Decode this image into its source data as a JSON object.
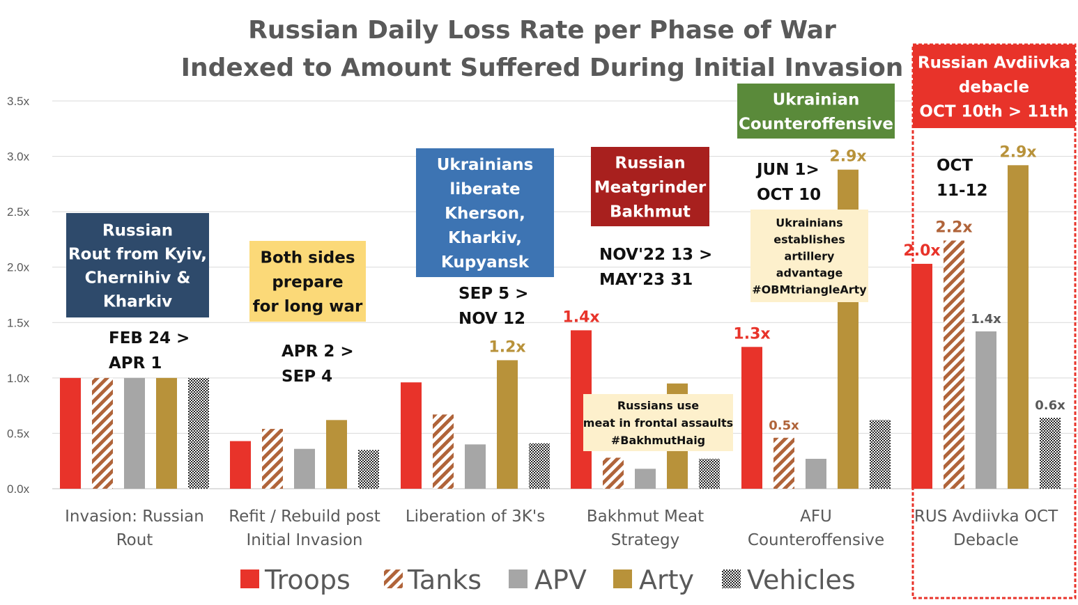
{
  "colors": {
    "Troops": "#e8332a",
    "Tanks": "#b0643a",
    "APV": "#a6a6a6",
    "Arty": "#b8923a",
    "Vehicles": "#222222",
    "highlight": "#e8332a",
    "navy": "#2e4a6b",
    "blue": "#3d74b3",
    "darkred": "#a8201e",
    "green": "#5a8a3a",
    "yellow": "#fbd978",
    "cream": "#fdf0cc"
  },
  "chart_data": {
    "type": "bar",
    "title": "Russian Daily Loss Rate per Phase of War",
    "subtitle": "Indexed to Amount Suffered During Initial Invasion",
    "ylim": [
      0,
      3.5
    ],
    "yticks": [
      {
        "value": 0.0,
        "label": "0.0x"
      },
      {
        "value": 0.5,
        "label": "0.5x"
      },
      {
        "value": 1.0,
        "label": "1.0x"
      },
      {
        "value": 1.5,
        "label": "1.5x"
      },
      {
        "value": 2.0,
        "label": "2.0x"
      },
      {
        "value": 2.5,
        "label": "2.5x"
      },
      {
        "value": 3.0,
        "label": "3.0x"
      },
      {
        "value": 3.5,
        "label": "3.5x"
      }
    ],
    "grid": true,
    "legend_position": "bottom",
    "categories": [
      [
        "Invasion: Russian",
        "Rout"
      ],
      [
        "Refit / Rebuild post",
        "Initial Invasion"
      ],
      [
        "Liberation of 3K's"
      ],
      [
        "Bakhmut Meat",
        "Strategy"
      ],
      [
        "AFU",
        "Counteroffensive"
      ],
      [
        "RUS Avdiivka OCT",
        "Debacle"
      ]
    ],
    "series": [
      {
        "name": "Troops",
        "values": [
          1.0,
          0.43,
          0.96,
          1.43,
          1.28,
          2.03
        ]
      },
      {
        "name": "Tanks",
        "values": [
          1.0,
          0.54,
          0.67,
          0.28,
          0.46,
          2.24
        ]
      },
      {
        "name": "APV",
        "values": [
          1.0,
          0.36,
          0.4,
          0.18,
          0.27,
          1.42
        ]
      },
      {
        "name": "Arty",
        "values": [
          1.0,
          0.62,
          1.16,
          0.95,
          2.88,
          2.92
        ]
      },
      {
        "name": "Vehicles",
        "values": [
          1.0,
          0.35,
          0.41,
          0.27,
          0.62,
          0.64
        ]
      }
    ],
    "data_labels": [
      {
        "category": 2,
        "series": 3,
        "text": "1.2x",
        "color": "#b8923a"
      },
      {
        "category": 3,
        "series": 0,
        "text": "1.4x",
        "color": "#e8332a"
      },
      {
        "category": 4,
        "series": 0,
        "text": "1.3x",
        "color": "#e8332a"
      },
      {
        "category": 4,
        "series": 1,
        "text": "0.5x",
        "color": "#b0643a"
      },
      {
        "category": 4,
        "series": 3,
        "text": "2.9x",
        "color": "#b8923a"
      },
      {
        "category": 5,
        "series": 0,
        "text": "2.0x",
        "color": "#e8332a"
      },
      {
        "category": 5,
        "series": 1,
        "text": "2.2x",
        "color": "#b0643a"
      },
      {
        "category": 5,
        "series": 2,
        "text": "1.4x",
        "color": "#595959"
      },
      {
        "category": 5,
        "series": 3,
        "text": "2.9x",
        "color": "#b8923a"
      },
      {
        "category": 5,
        "series": 4,
        "text": "0.6x",
        "color": "#595959"
      }
    ]
  },
  "annotations": {
    "phase_boxes": [
      {
        "lines": [
          "Russian",
          "Rout from Kyiv,",
          "Chernihiv &",
          "Kharkiv"
        ],
        "style": "navy"
      },
      {
        "lines": [
          "Both sides",
          "prepare",
          "for long war"
        ],
        "style": "yellow"
      },
      {
        "lines": [
          "Ukrainians",
          "liberate",
          "Kherson,",
          "Kharkiv,",
          "Kupyansk"
        ],
        "style": "blue"
      },
      {
        "lines": [
          "Russian",
          "Meatgrinder",
          "Bakhmut"
        ],
        "style": "darkred"
      },
      {
        "lines": [
          "Ukrainian",
          "Counteroffensive"
        ],
        "style": "green"
      },
      {
        "lines": [
          "Russian Avdiivka",
          "debacle",
          "OCT 10th > 11th"
        ],
        "style": "highlight"
      }
    ],
    "date_ranges": [
      [
        "FEB 24 >",
        "APR 1"
      ],
      [
        "APR 2 >",
        "SEP 4"
      ],
      [
        "SEP 5 >",
        "NOV 12"
      ],
      [
        "NOV'22 13 >",
        "MAY'23 31"
      ],
      [
        "JUN 1>",
        "OCT 10"
      ],
      [
        "OCT",
        "11-12"
      ]
    ],
    "notes": [
      {
        "lines": [
          "Russians use",
          "meat in frontal assaults",
          "#BakhmutHaig"
        ]
      },
      {
        "lines": [
          "Ukrainians",
          "establishes",
          "artillery",
          "advantage",
          "#OBMtriangleArty"
        ]
      }
    ]
  }
}
